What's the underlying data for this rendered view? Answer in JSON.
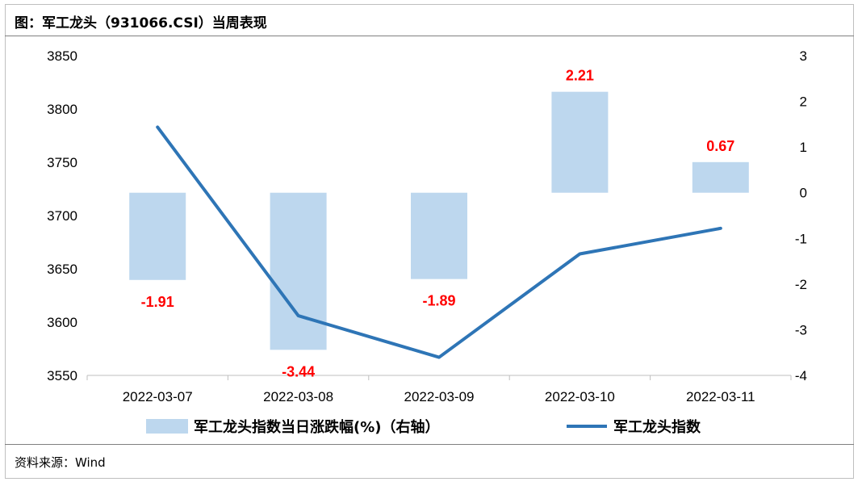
{
  "header": {
    "title": "图：军工龙头（931066.CSI）当周表现"
  },
  "footer": {
    "source": "资料来源：Wind"
  },
  "chart_data": {
    "type": "bar",
    "categories": [
      "2022-03-07",
      "2022-03-08",
      "2022-03-09",
      "2022-03-10",
      "2022-03-11"
    ],
    "series": [
      {
        "name": "军工龙头指数当日涨跌幅(%)（右轴）",
        "type": "bar",
        "axis": "right",
        "values": [
          -1.91,
          -3.44,
          -1.89,
          2.21,
          0.67
        ],
        "value_labels": [
          "-1.91",
          "-3.44",
          "-1.89",
          "2.21",
          "0.67"
        ],
        "color": "#bdd7ee",
        "label_color": "#ff0000"
      },
      {
        "name": "军工龙头指数",
        "type": "line",
        "axis": "left",
        "values": [
          3783,
          3606,
          3567,
          3664,
          3688
        ],
        "color": "#2e75b6"
      }
    ],
    "left_axis": {
      "range": [
        3550,
        3850
      ],
      "ticks": [
        "3850",
        "3800",
        "3750",
        "3700",
        "3650",
        "3600",
        "3550"
      ]
    },
    "right_axis": {
      "range": [
        -4,
        3
      ],
      "ticks": [
        "3",
        "2",
        "1",
        "0",
        "-1",
        "-2",
        "-3",
        "-4"
      ]
    },
    "grid": false,
    "legend_position": "bottom"
  }
}
